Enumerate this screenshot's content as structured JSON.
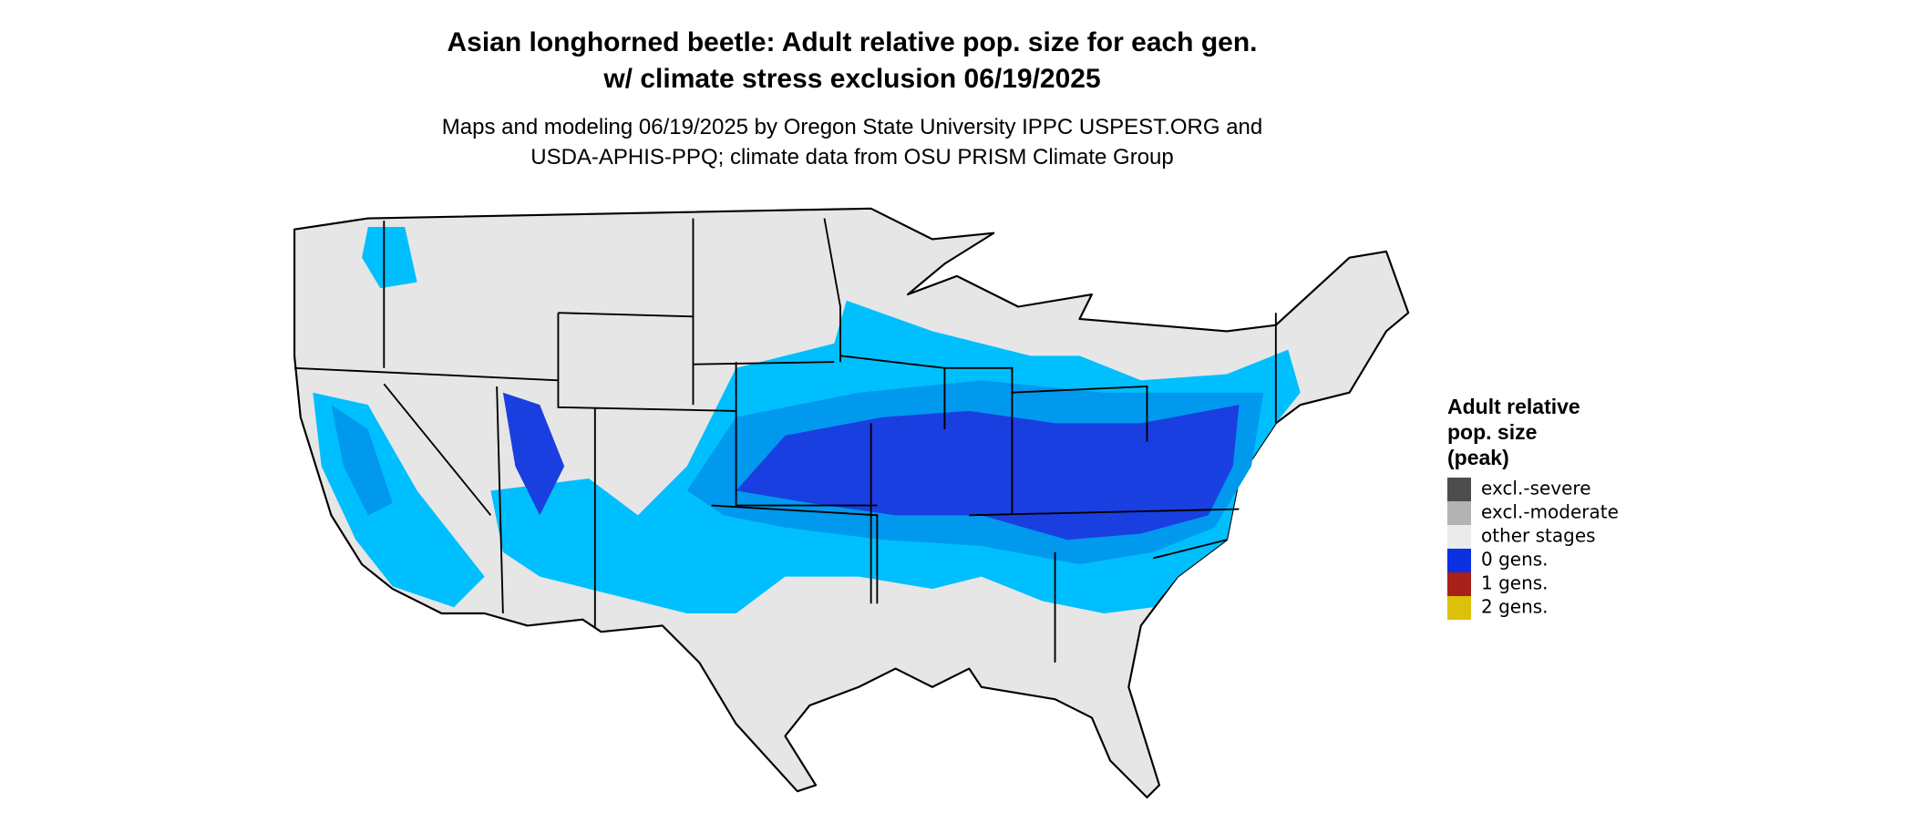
{
  "header": {
    "title": [
      "Asian longhorned beetle: Adult relative pop. size for each gen.",
      "w/ climate stress exclusion 06/19/2025"
    ],
    "subtitle": [
      "Maps and modeling 06/19/2025 by Oregon State University IPPC USPEST.ORG and",
      "USDA-APHIS-PPQ; climate data from OSU PRISM Climate Group"
    ]
  },
  "legend": {
    "title": [
      "Adult relative",
      "pop. size",
      "(peak)"
    ],
    "items": [
      {
        "label": "excl.-severe",
        "color": "#4d4d4d"
      },
      {
        "label": "excl.-moderate",
        "color": "#b3b3b3"
      },
      {
        "label": "other stages",
        "color": "#ebebeb"
      },
      {
        "label": "0 gens.",
        "color": "#0a30e0"
      },
      {
        "label": "1 gens.",
        "color": "#a8201a"
      },
      {
        "label": "2 gens.",
        "color": "#dcc10a"
      }
    ]
  }
}
